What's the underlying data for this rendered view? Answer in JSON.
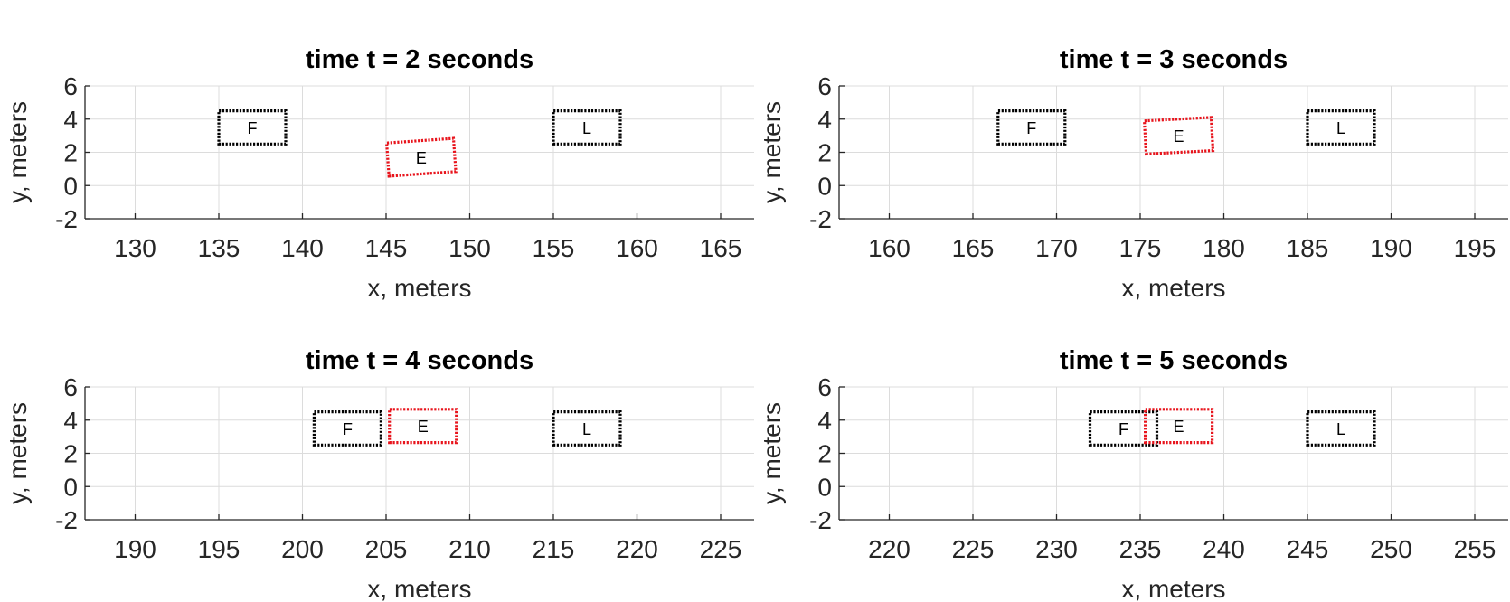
{
  "chart_data": [
    {
      "type": "scatter",
      "title": "time t = 2 seconds",
      "xlabel": "x, meters",
      "ylabel": "y, meters",
      "xlim": [
        127,
        167
      ],
      "ylim": [
        -2,
        6
      ],
      "xticks": [
        130,
        135,
        140,
        145,
        150,
        155,
        160,
        165
      ],
      "yticks": [
        -2,
        0,
        2,
        4,
        6
      ],
      "grid": true,
      "vehicles": [
        {
          "label": "F",
          "color": "#000000",
          "center": [
            137,
            3.5
          ],
          "length": 4,
          "width": 2,
          "heading_deg": 0
        },
        {
          "label": "E",
          "color": "#e8141c",
          "center": [
            147.1,
            1.7
          ],
          "length": 4,
          "width": 2,
          "heading_deg": 4
        },
        {
          "label": "L",
          "color": "#000000",
          "center": [
            157,
            3.5
          ],
          "length": 4,
          "width": 2,
          "heading_deg": 0
        }
      ]
    },
    {
      "type": "scatter",
      "title": "time t = 3 seconds",
      "xlabel": "x, meters",
      "ylabel": "y, meters",
      "xlim": [
        157,
        197
      ],
      "ylim": [
        -2,
        6
      ],
      "xticks": [
        160,
        165,
        170,
        175,
        180,
        185,
        190,
        195
      ],
      "yticks": [
        -2,
        0,
        2,
        4,
        6
      ],
      "grid": true,
      "vehicles": [
        {
          "label": "F",
          "color": "#000000",
          "center": [
            168.5,
            3.5
          ],
          "length": 4,
          "width": 2,
          "heading_deg": 0
        },
        {
          "label": "E",
          "color": "#e8141c",
          "center": [
            177.3,
            3.0
          ],
          "length": 4,
          "width": 2,
          "heading_deg": 3
        },
        {
          "label": "L",
          "color": "#000000",
          "center": [
            187,
            3.5
          ],
          "length": 4,
          "width": 2,
          "heading_deg": 0
        }
      ]
    },
    {
      "type": "scatter",
      "title": "time t = 4 seconds",
      "xlabel": "x, meters",
      "ylabel": "y, meters",
      "xlim": [
        187,
        227
      ],
      "ylim": [
        -2,
        6
      ],
      "xticks": [
        190,
        195,
        200,
        205,
        210,
        215,
        220,
        225
      ],
      "yticks": [
        -2,
        0,
        2,
        4,
        6
      ],
      "grid": true,
      "vehicles": [
        {
          "label": "F",
          "color": "#000000",
          "center": [
            202.7,
            3.5
          ],
          "length": 4,
          "width": 2,
          "heading_deg": 0
        },
        {
          "label": "E",
          "color": "#e8141c",
          "center": [
            207.2,
            3.65
          ],
          "length": 4,
          "width": 2,
          "heading_deg": 0
        },
        {
          "label": "L",
          "color": "#000000",
          "center": [
            217,
            3.5
          ],
          "length": 4,
          "width": 2,
          "heading_deg": 0
        }
      ]
    },
    {
      "type": "scatter",
      "title": "time t = 5 seconds",
      "xlabel": "x, meters",
      "ylabel": "y, meters",
      "xlim": [
        217,
        257
      ],
      "ylim": [
        -2,
        6
      ],
      "xticks": [
        220,
        225,
        230,
        235,
        240,
        245,
        250,
        255
      ],
      "yticks": [
        -2,
        0,
        2,
        4,
        6
      ],
      "grid": true,
      "vehicles": [
        {
          "label": "F",
          "color": "#000000",
          "center": [
            234,
            3.5
          ],
          "length": 4,
          "width": 2,
          "heading_deg": 0
        },
        {
          "label": "E",
          "color": "#e8141c",
          "center": [
            237.3,
            3.65
          ],
          "length": 4,
          "width": 2,
          "heading_deg": 0
        },
        {
          "label": "L",
          "color": "#000000",
          "center": [
            247,
            3.5
          ],
          "length": 4,
          "width": 2,
          "heading_deg": 0
        }
      ]
    }
  ]
}
